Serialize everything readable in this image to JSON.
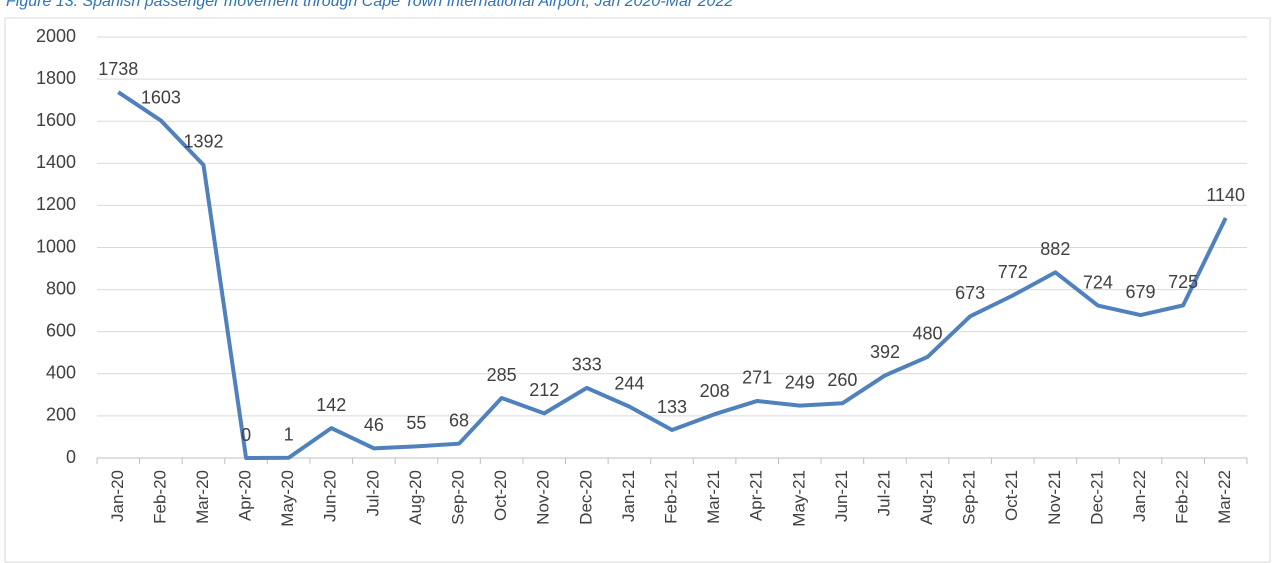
{
  "chart_data": {
    "type": "line",
    "title": "Figure 13: Spanish passenger movement through Cape Town International Airport, Jan 2020-Mar 2022",
    "categories": [
      "Jan-20",
      "Feb-20",
      "Mar-20",
      "Apr-20",
      "May-20",
      "Jun-20",
      "Jul-20",
      "Aug-20",
      "Sep-20",
      "Oct-20",
      "Nov-20",
      "Dec-20",
      "Jan-21",
      "Feb-21",
      "Mar-21",
      "Apr-21",
      "May-21",
      "Jun-21",
      "Jul-21",
      "Aug-21",
      "Sep-21",
      "Oct-21",
      "Nov-21",
      "Dec-21",
      "Jan-22",
      "Feb-22",
      "Mar-22"
    ],
    "values": [
      1738,
      1603,
      1392,
      0,
      1,
      142,
      46,
      55,
      68,
      285,
      212,
      333,
      244,
      133,
      208,
      271,
      249,
      260,
      392,
      480,
      673,
      772,
      882,
      724,
      679,
      725,
      1140
    ],
    "color": "#4f81bd",
    "ylim": [
      0,
      2000
    ],
    "yticks": [
      0,
      200,
      400,
      600,
      800,
      1000,
      1200,
      1400,
      1600,
      1800,
      2000
    ],
    "grid": true
  }
}
